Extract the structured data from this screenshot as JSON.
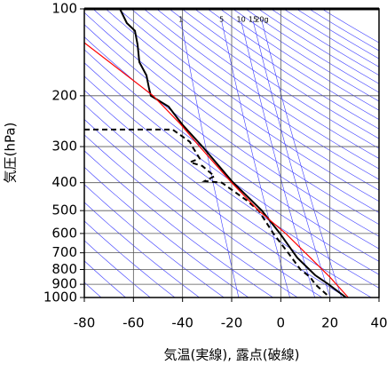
{
  "chart_data": {
    "type": "line",
    "x_label": "気温(実線), 露点(破線)",
    "y_label": "気圧(hPa)",
    "xlim": [
      -80,
      40
    ],
    "xticks": [
      -80,
      -60,
      -40,
      -20,
      0,
      20,
      40
    ],
    "ylim": [
      1000,
      100
    ],
    "yticks": [
      100,
      200,
      300,
      400,
      500,
      600,
      700,
      800,
      900,
      1000
    ],
    "y_scale": "log",
    "grid": true,
    "series": [
      {
        "color": "#000000",
        "dash": false,
        "width": 2,
        "x": [
          -65.5,
          -62.7,
          -59.4,
          -58.3,
          -57.6,
          -54.7,
          -53.6,
          -52.9,
          -45.7,
          -40.2,
          -31.9,
          -19.6,
          -7.7,
          -0.5,
          6.7,
          14,
          19.4,
          26.6
        ],
        "values": [
          100,
          112,
          119,
          133,
          153,
          170,
          189,
          200,
          218,
          251,
          300,
          398,
          500,
          597,
          728,
          837,
          900,
          1000
        ]
      },
      {
        "color": "#000000",
        "dash": true,
        "width": 2,
        "x": [
          -80,
          -44,
          -37,
          -36,
          -33,
          -37,
          -32,
          -27,
          -31,
          -24,
          -14,
          -9,
          -3,
          3,
          8,
          12,
          14,
          20
        ],
        "values": [
          262,
          262,
          289,
          300,
          330,
          340,
          350,
          380,
          395,
          400,
          460,
          500,
          600,
          700,
          800,
          850,
          900,
          1000
        ]
      },
      {
        "color": "#ff0000",
        "dash": false,
        "width": 1.2,
        "x": [
          -80,
          -52,
          -41,
          -33,
          -20,
          -9,
          2,
          10,
          20,
          27.5
        ],
        "values": [
          131,
          200,
          250,
          300,
          400,
          500,
          600,
          700,
          850,
          1000
        ]
      }
    ],
    "mixing_ratio_lines": [
      {
        "value": 1,
        "label": "1"
      },
      {
        "value": 5,
        "label": "5"
      },
      {
        "value": 10,
        "label": "10"
      },
      {
        "value": 15,
        "label": "15"
      },
      {
        "value": 20,
        "label": "20g"
      }
    ]
  }
}
